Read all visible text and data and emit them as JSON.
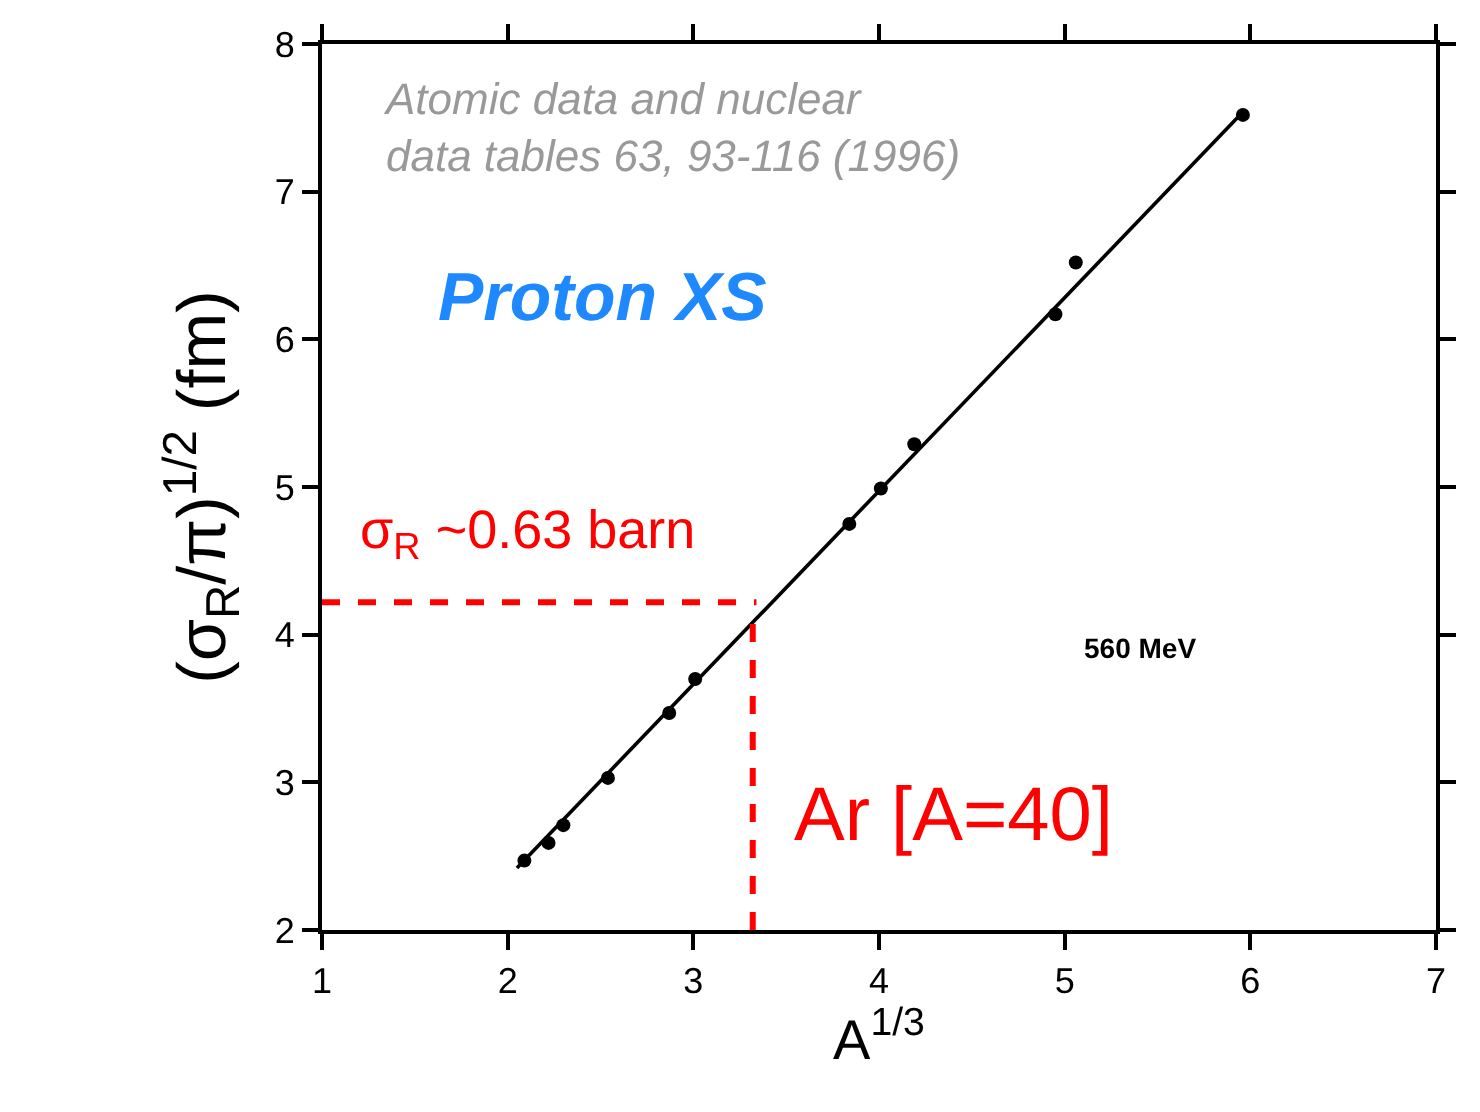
{
  "chart_data": {
    "type": "scatter",
    "xlabel": "A$^{1/3}$",
    "ylabel": "(σ$_{R}$/π)$^{1/2}$ (fm)",
    "xlim": [
      1,
      7
    ],
    "xticks": [
      1,
      2,
      3,
      4,
      5,
      6,
      7
    ],
    "ylim": [
      2,
      8
    ],
    "yticks": [
      2,
      3,
      4,
      5,
      6,
      7,
      8
    ],
    "series": [
      {
        "marker": "circle",
        "color": "#000000",
        "x": [
          2.09,
          2.22,
          2.3,
          2.54,
          2.87,
          3.01,
          3.84,
          4.01,
          4.19,
          4.95,
          5.06,
          5.96
        ],
        "values": [
          2.47,
          2.59,
          2.71,
          3.03,
          3.47,
          3.7,
          4.75,
          4.99,
          5.29,
          6.17,
          6.52,
          7.52
        ]
      },
      {
        "type": "line",
        "marker": "none",
        "color": "#000000",
        "line_style": "solid",
        "x": [
          2.05,
          5.93
        ],
        "values": [
          2.42,
          7.5
        ]
      },
      {
        "type": "line",
        "marker": "none",
        "color": "#ff0000",
        "line_style": "dashed",
        "x": [
          1,
          3.34
        ],
        "values": [
          4.22,
          4.22
        ]
      },
      {
        "type": "line",
        "marker": "none",
        "color": "#ff0000",
        "line_style": "dashed",
        "x": [
          3.32,
          3.32
        ],
        "values": [
          2,
          4.1
        ]
      }
    ],
    "annotations": [
      "Atomic data and nuclear\ndata tables 63, 93-116 (1996)",
      "Proton XS",
      "σ$_{R}$ ~0.63 barn",
      "560 MeV",
      "Ar [A=40]"
    ]
  }
}
